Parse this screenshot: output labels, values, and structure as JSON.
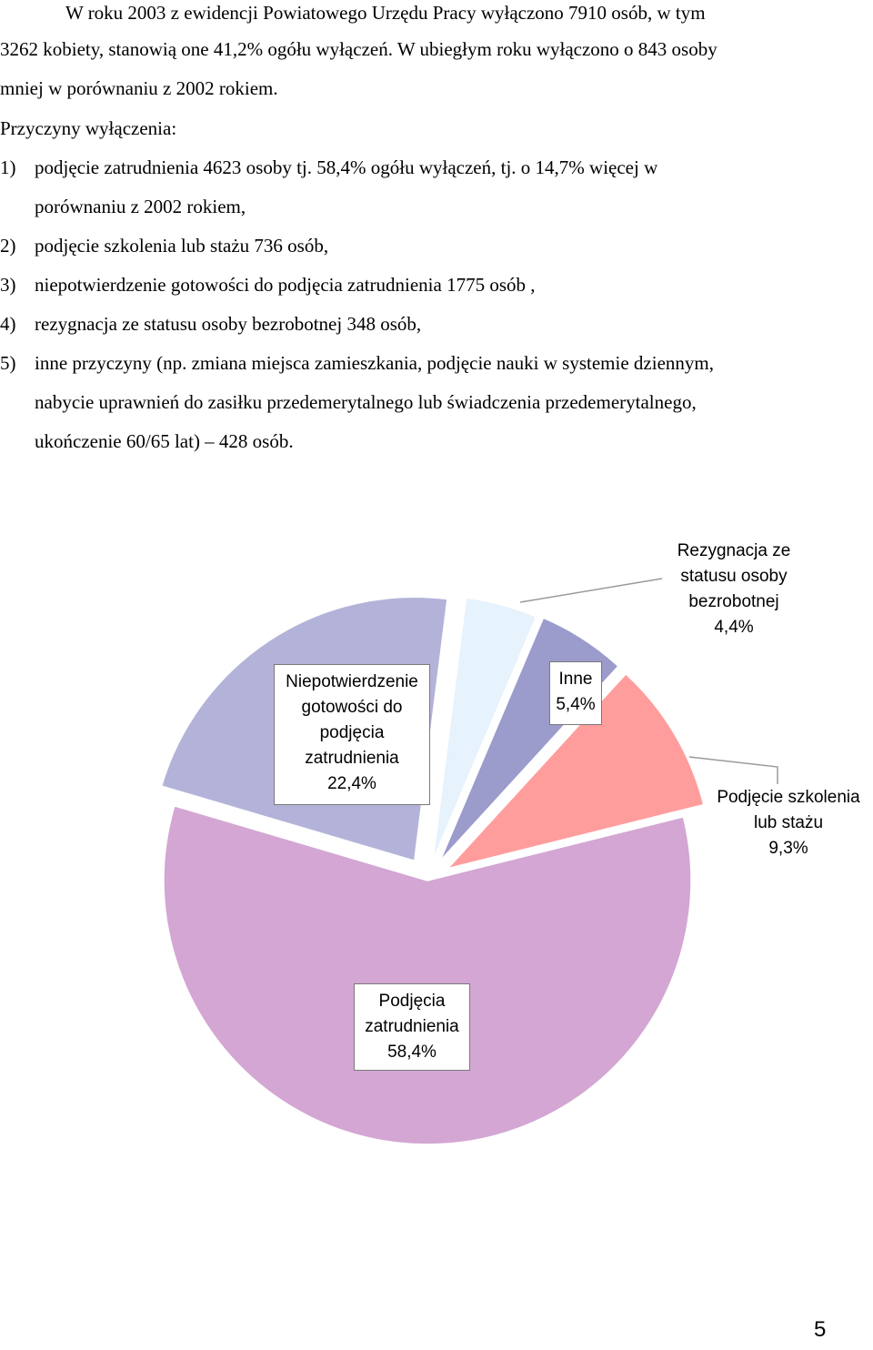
{
  "document": {
    "intro_line1": "W roku 2003 z ewidencji Powiatowego Urzędu Pracy wyłączono 7910 osób, w tym",
    "intro_line2": "3262 kobiety, stanowią one 41,2% ogółu wyłączeń. W ubiegłym roku wyłączono o 843 osoby",
    "intro_line3": "mniej w porównaniu z 2002 rokiem.",
    "reasons_heading": "Przyczyny wyłączenia:",
    "reasons": [
      {
        "num": "1)",
        "lines": [
          "podjęcie zatrudnienia 4623 osoby tj. 58,4% ogółu wyłączeń, tj. o 14,7% więcej w",
          "porównaniu z 2002 rokiem,"
        ]
      },
      {
        "num": "2)",
        "lines": [
          "podjęcie szkolenia lub stażu 736 osób,"
        ]
      },
      {
        "num": "3)",
        "lines": [
          "niepotwierdzenie gotowości do podjęcia zatrudnienia 1775 osób ,"
        ]
      },
      {
        "num": "4)",
        "lines": [
          "rezygnacja ze statusu osoby bezrobotnej 348 osób,"
        ]
      },
      {
        "num": "5)",
        "lines": [
          "inne przyczyny (np. zmiana miejsca zamieszkania, podjęcie nauki w systemie dziennym,",
          "nabycie uprawnień do zasiłku przedemerytalnego lub świadczenia przedemerytalnego,",
          "ukończenie 60/65 lat) – 428 osób."
        ]
      }
    ],
    "page_number": "5"
  },
  "chart_data": {
    "type": "pie",
    "title": "",
    "exploded": true,
    "slices": [
      {
        "label_lines": [
          "Podjęcia",
          "zatrudnienia"
        ],
        "pct_text": "58,4%",
        "value": 58.4,
        "color": "#d3a6d3"
      },
      {
        "label_lines": [
          "Niepotwierdzenie",
          "gotowości do",
          "podjęcia",
          "zatrudnienia"
        ],
        "pct_text": "22,4%",
        "value": 22.4,
        "color": "#b3b3d9"
      },
      {
        "label_lines": [
          "Rezygnacja ze",
          "statusu osoby",
          "bezrobotnej"
        ],
        "pct_text": "4,4%",
        "value": 4.4,
        "color": "#e6f2fc"
      },
      {
        "label_lines": [
          "Inne"
        ],
        "pct_text": "5,4%",
        "value": 5.4,
        "color": "#9b9bcc"
      },
      {
        "label_lines": [
          "Podjęcie szkolenia",
          "lub stażu"
        ],
        "pct_text": "9,3%",
        "value": 9.3,
        "color": "#ff9d9d"
      }
    ]
  }
}
